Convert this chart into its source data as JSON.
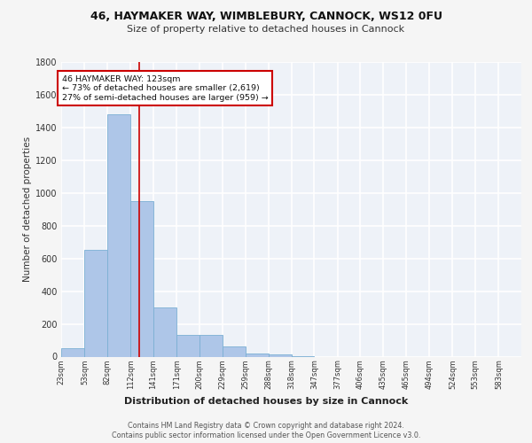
{
  "title1": "46, HAYMAKER WAY, WIMBLEBURY, CANNOCK, WS12 0FU",
  "title2": "Size of property relative to detached houses in Cannock",
  "xlabel": "Distribution of detached houses by size in Cannock",
  "ylabel": "Number of detached properties",
  "footer1": "Contains HM Land Registry data © Crown copyright and database right 2024.",
  "footer2": "Contains public sector information licensed under the Open Government Licence v3.0.",
  "annotation_line1": "46 HAYMAKER WAY: 123sqm",
  "annotation_line2": "← 73% of detached houses are smaller (2,619)",
  "annotation_line3": "27% of semi-detached houses are larger (959) →",
  "property_size_sqm": 123,
  "bin_edges": [
    23,
    53,
    82,
    112,
    141,
    171,
    200,
    229,
    259,
    288,
    318,
    347,
    377,
    406,
    435,
    465,
    494,
    524,
    553,
    583,
    612
  ],
  "bar_heights": [
    50,
    650,
    1480,
    950,
    300,
    130,
    130,
    60,
    20,
    15,
    5,
    0,
    0,
    0,
    0,
    0,
    0,
    0,
    0,
    0
  ],
  "bar_color": "#aec6e8",
  "bar_edge_color": "#7bafd4",
  "vline_color": "#cc0000",
  "vline_x": 123,
  "ylim": [
    0,
    1800
  ],
  "yticks": [
    0,
    200,
    400,
    600,
    800,
    1000,
    1200,
    1400,
    1600,
    1800
  ],
  "background_color": "#eef2f8",
  "grid_color": "#ffffff",
  "annotation_box_edge": "#cc0000",
  "annotation_box_fill": "#ffffff",
  "fig_bg": "#f5f5f5"
}
